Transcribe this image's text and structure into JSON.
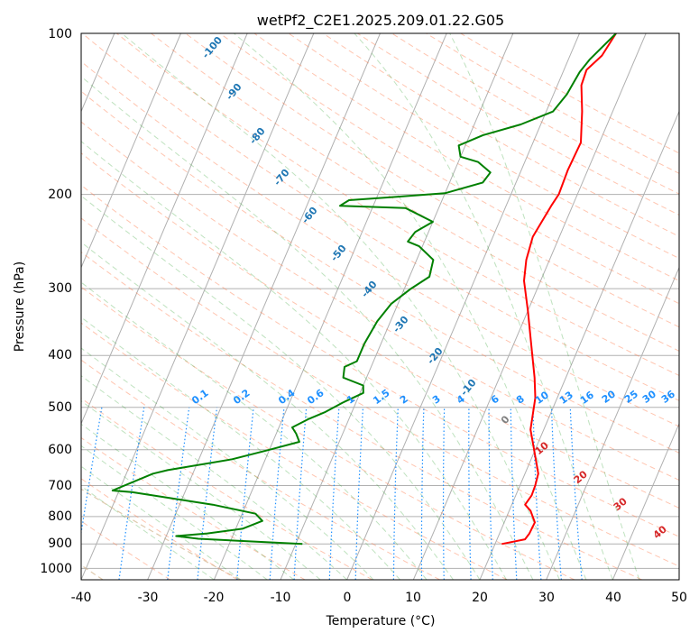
{
  "chart_data": {
    "type": "line",
    "subtype": "skew-t log-p",
    "title": "wetPf2_C2E1.2025.209.01.22.G05",
    "xlabel": "Temperature (°C)",
    "ylabel": "Pressure (hPa)",
    "xlim": [
      -40,
      50
    ],
    "ylim": [
      1050,
      100
    ],
    "y_scale": "log",
    "grid": true,
    "x_ticks": [
      -40,
      -30,
      -20,
      -10,
      0,
      10,
      20,
      30,
      40,
      50
    ],
    "y_ticks": [
      100,
      200,
      300,
      400,
      500,
      600,
      700,
      800,
      900,
      1000
    ],
    "series": [
      {
        "color": "#ff0000",
        "points": [
          [
            21,
            900
          ],
          [
            24.2,
            882
          ],
          [
            24.5,
            860
          ],
          [
            24.6,
            820
          ],
          [
            23.2,
            780
          ],
          [
            22.0,
            760
          ],
          [
            22.4,
            730
          ],
          [
            22.3,
            700
          ],
          [
            22.0,
            665
          ],
          [
            21.2,
            640
          ],
          [
            18.0,
            550
          ],
          [
            16.7,
            480
          ],
          [
            15.3,
            440
          ],
          [
            12.6,
            380
          ],
          [
            10.0,
            330
          ],
          [
            7.5,
            290
          ],
          [
            6.5,
            265
          ],
          [
            6.0,
            240
          ],
          [
            6.8,
            210
          ],
          [
            7.2,
            200
          ],
          [
            7.0,
            180
          ],
          [
            7.2,
            160
          ],
          [
            5.4,
            140
          ],
          [
            3.6,
            125
          ],
          [
            3.4,
            117
          ],
          [
            4.8,
            110
          ],
          [
            5.5,
            100
          ]
        ]
      },
      {
        "color": "#008000",
        "points": [
          [
            -9,
            900
          ],
          [
            -25,
            880
          ],
          [
            -28.5,
            870
          ],
          [
            -24,
            860
          ],
          [
            -19,
            843
          ],
          [
            -16.5,
            815
          ],
          [
            -18,
            790
          ],
          [
            -25,
            760
          ],
          [
            -38,
            720
          ],
          [
            -41,
            715
          ],
          [
            -36,
            665
          ],
          [
            -34,
            655
          ],
          [
            -25,
            625
          ],
          [
            -20,
            600
          ],
          [
            -16,
            580
          ],
          [
            -17,
            560
          ],
          [
            -18,
            545
          ],
          [
            -16,
            525
          ],
          [
            -14,
            510
          ],
          [
            -12,
            490
          ],
          [
            -9.5,
            470
          ],
          [
            -10,
            455
          ],
          [
            -13.5,
            440
          ],
          [
            -14,
            420
          ],
          [
            -12.5,
            410
          ],
          [
            -12.5,
            380
          ],
          [
            -12,
            345
          ],
          [
            -11,
            320
          ],
          [
            -9,
            300
          ],
          [
            -7,
            285
          ],
          [
            -7.5,
            265
          ],
          [
            -10.5,
            250
          ],
          [
            -12.5,
            245
          ],
          [
            -12,
            235
          ],
          [
            -10,
            225
          ],
          [
            -15,
            212
          ],
          [
            -25,
            210
          ],
          [
            -24,
            205
          ],
          [
            -17,
            202
          ],
          [
            -10,
            199
          ],
          [
            -5,
            190
          ],
          [
            -4.5,
            182
          ],
          [
            -7,
            174
          ],
          [
            -10,
            170
          ],
          [
            -11,
            162
          ],
          [
            -8,
            155
          ],
          [
            -3,
            148
          ],
          [
            1,
            140
          ],
          [
            2,
            130
          ],
          [
            2.5,
            118
          ],
          [
            3.2,
            112
          ],
          [
            5.5,
            100
          ]
        ]
      }
    ],
    "mixing_ratio_labels": [
      "0.1",
      "0.2",
      "0.4",
      "0.6",
      "1",
      "1.5",
      "2",
      "3",
      "4",
      "6",
      "8",
      "10",
      "13",
      "16",
      "20",
      "25",
      "30",
      "36"
    ],
    "dry_adiabat_labels": [
      "-100",
      "-90",
      "-80",
      "-70",
      "-60",
      "-50",
      "-40",
      "-30",
      "-20",
      "-10"
    ],
    "moist_adiabat_labels": [
      "0"
    ],
    "theta_e_labels": [
      "10",
      "20",
      "30",
      "40"
    ]
  }
}
